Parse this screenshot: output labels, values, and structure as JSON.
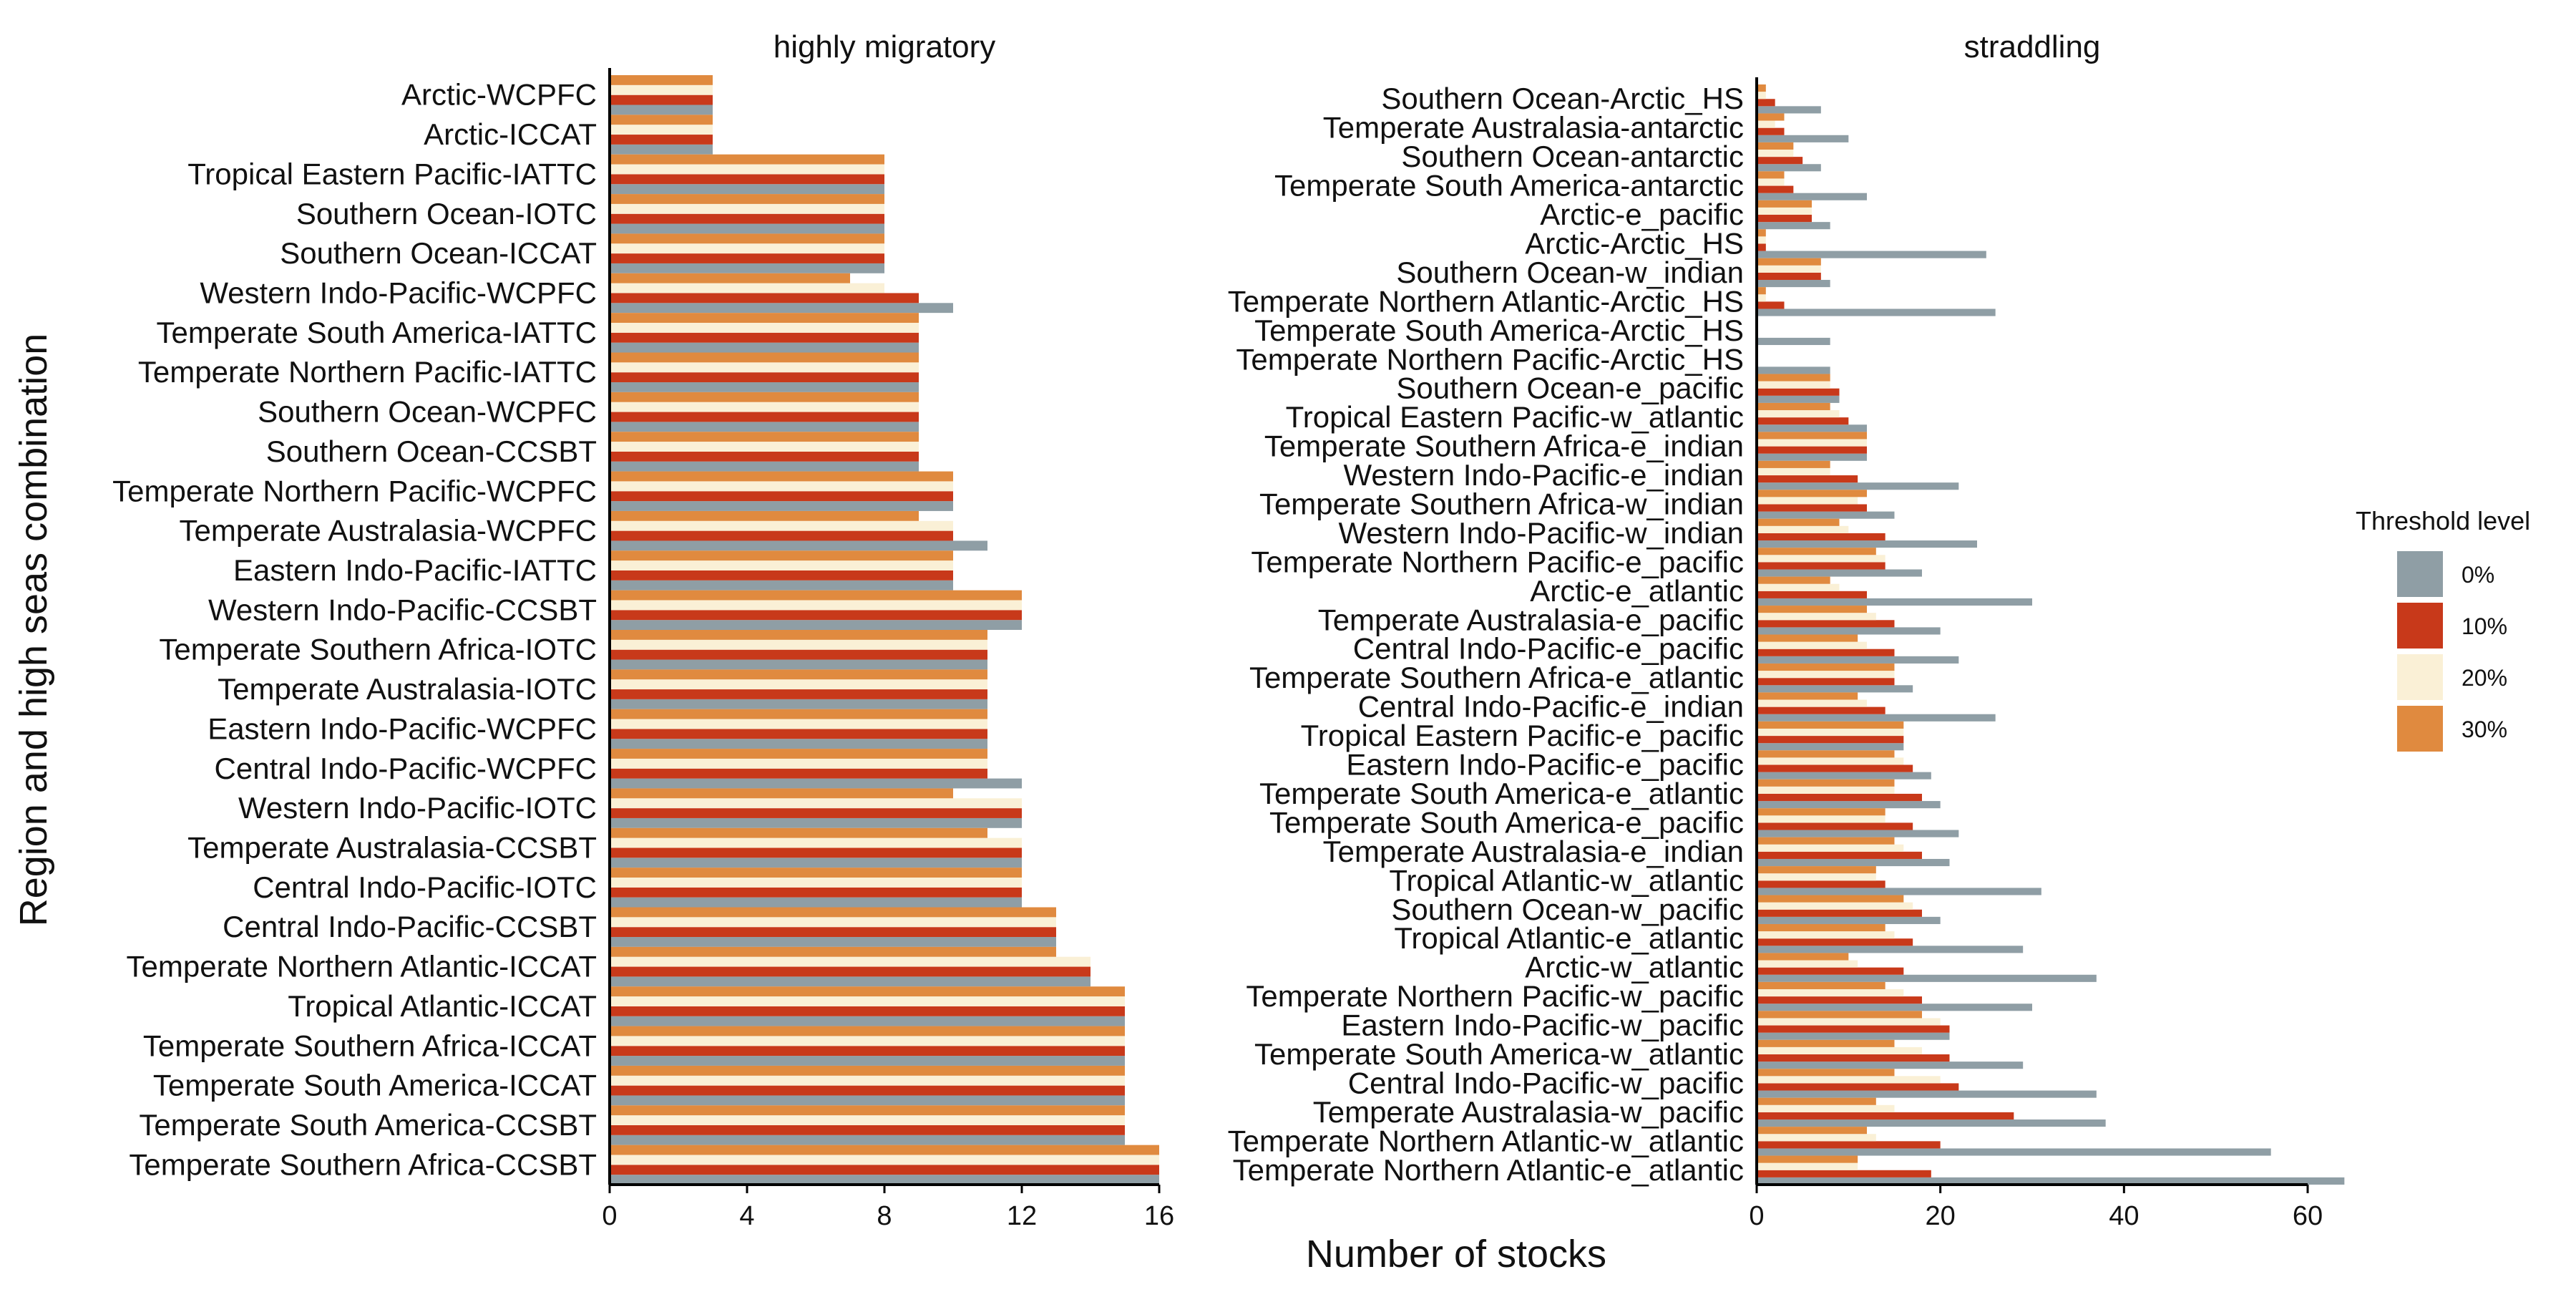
{
  "figure": {
    "ylabel": "Region and high seas combination",
    "xlabel": "Number of stocks"
  },
  "legend": {
    "title": "Threshold level",
    "entries": [
      {
        "label": "0%",
        "color": "#8f9ea5"
      },
      {
        "label": "10%",
        "color": "#c8391a"
      },
      {
        "label": "20%",
        "color": "#faf0d6"
      },
      {
        "label": "30%",
        "color": "#e08a3f"
      }
    ]
  },
  "chart_data": [
    {
      "type": "bar",
      "orientation": "horizontal",
      "title": "highly migratory",
      "xlim": [
        0,
        16
      ],
      "xticks": [
        0,
        4,
        8,
        12,
        16
      ],
      "categories": [
        "Arctic-WCPFC",
        "Arctic-ICCAT",
        "Tropical Eastern Pacific-IATTC",
        "Southern Ocean-IOTC",
        "Southern Ocean-ICCAT",
        "Western Indo-Pacific-WCPFC",
        "Temperate South America-IATTC",
        "Temperate Northern Pacific-IATTC",
        "Southern Ocean-WCPFC",
        "Southern Ocean-CCSBT",
        "Temperate Northern Pacific-WCPFC",
        "Temperate Australasia-WCPFC",
        "Eastern Indo-Pacific-IATTC",
        "Western Indo-Pacific-CCSBT",
        "Temperate Southern Africa-IOTC",
        "Temperate Australasia-IOTC",
        "Eastern Indo-Pacific-WCPFC",
        "Central Indo-Pacific-WCPFC",
        "Western Indo-Pacific-IOTC",
        "Temperate Australasia-CCSBT",
        "Central Indo-Pacific-IOTC",
        "Central Indo-Pacific-CCSBT",
        "Temperate Northern Atlantic-ICCAT",
        "Tropical Atlantic-ICCAT",
        "Temperate Southern Africa-ICCAT",
        "Temperate South America-ICCAT",
        "Temperate South America-CCSBT",
        "Temperate Southern Africa-CCSBT"
      ],
      "series": [
        {
          "name": "0%",
          "values": [
            3,
            3,
            8,
            8,
            8,
            10,
            9,
            9,
            9,
            9,
            10,
            11,
            10,
            12,
            11,
            11,
            11,
            12,
            12,
            12,
            12,
            13,
            14,
            15,
            15,
            15,
            15,
            16
          ]
        },
        {
          "name": "10%",
          "values": [
            3,
            3,
            8,
            8,
            8,
            9,
            9,
            9,
            9,
            9,
            10,
            10,
            10,
            12,
            11,
            11,
            11,
            11,
            12,
            12,
            12,
            13,
            14,
            15,
            15,
            15,
            15,
            16
          ]
        },
        {
          "name": "20%",
          "values": [
            3,
            3,
            8,
            8,
            8,
            8,
            9,
            9,
            9,
            9,
            10,
            10,
            10,
            12,
            11,
            11,
            11,
            11,
            12,
            12,
            12,
            13,
            14,
            15,
            15,
            15,
            15,
            16
          ]
        },
        {
          "name": "30%",
          "values": [
            3,
            3,
            8,
            8,
            8,
            7,
            9,
            9,
            9,
            9,
            10,
            9,
            10,
            12,
            11,
            11,
            11,
            11,
            10,
            11,
            12,
            13,
            13,
            15,
            15,
            15,
            15,
            16
          ]
        }
      ]
    },
    {
      "type": "bar",
      "orientation": "horizontal",
      "title": "straddling",
      "xlim": [
        0,
        60
      ],
      "xticks": [
        0,
        20,
        40,
        60
      ],
      "categories": [
        "Southern Ocean-Arctic_HS",
        "Temperate Australasia-antarctic",
        "Southern Ocean-antarctic",
        "Temperate South America-antarctic",
        "Arctic-e_pacific",
        "Arctic-Arctic_HS",
        "Southern Ocean-w_indian",
        "Temperate Northern Atlantic-Arctic_HS",
        "Temperate South America-Arctic_HS",
        "Temperate Northern Pacific-Arctic_HS",
        "Southern Ocean-e_pacific",
        "Tropical Eastern Pacific-w_atlantic",
        "Temperate Southern Africa-e_indian",
        "Western Indo-Pacific-e_indian",
        "Temperate Southern Africa-w_indian",
        "Western Indo-Pacific-w_indian",
        "Temperate Northern Pacific-e_pacific",
        "Arctic-e_atlantic",
        "Temperate Australasia-e_pacific",
        "Central Indo-Pacific-e_pacific",
        "Temperate Southern Africa-e_atlantic",
        "Central Indo-Pacific-e_indian",
        "Tropical Eastern Pacific-e_pacific",
        "Eastern Indo-Pacific-e_pacific",
        "Temperate South America-e_atlantic",
        "Temperate South America-e_pacific",
        "Temperate Australasia-e_indian",
        "Tropical Atlantic-w_atlantic",
        "Southern Ocean-w_pacific",
        "Tropical Atlantic-e_atlantic",
        "Arctic-w_atlantic",
        "Temperate Northern Pacific-w_pacific",
        "Eastern Indo-Pacific-w_pacific",
        "Temperate South America-w_atlantic",
        "Central Indo-Pacific-w_pacific",
        "Temperate Australasia-w_pacific",
        "Temperate Northern Atlantic-w_atlantic",
        "Temperate Northern Atlantic-e_atlantic"
      ],
      "series": [
        {
          "name": "0%",
          "values": [
            7,
            10,
            7,
            12,
            8,
            25,
            8,
            26,
            8,
            8,
            9,
            12,
            12,
            22,
            15,
            24,
            18,
            30,
            20,
            22,
            17,
            26,
            16,
            19,
            20,
            22,
            21,
            31,
            20,
            29,
            37,
            30,
            21,
            29,
            37,
            38,
            56,
            64
          ]
        },
        {
          "name": "10%",
          "values": [
            2,
            3,
            5,
            4,
            6,
            1,
            7,
            3,
            0,
            0,
            9,
            10,
            12,
            11,
            12,
            14,
            14,
            12,
            15,
            15,
            15,
            14,
            16,
            17,
            18,
            17,
            18,
            14,
            18,
            17,
            16,
            18,
            21,
            21,
            22,
            28,
            20,
            19
          ]
        },
        {
          "name": "20%",
          "values": [
            1,
            2,
            4,
            3,
            6,
            1,
            7,
            1,
            0,
            0,
            8,
            9,
            12,
            8,
            11,
            10,
            14,
            9,
            13,
            12,
            15,
            12,
            16,
            16,
            15,
            14,
            16,
            13,
            17,
            15,
            11,
            16,
            20,
            18,
            20,
            15,
            13,
            11
          ]
        },
        {
          "name": "30%",
          "values": [
            1,
            3,
            4,
            3,
            6,
            1,
            7,
            1,
            0,
            0,
            8,
            8,
            12,
            8,
            12,
            9,
            13,
            8,
            12,
            11,
            15,
            11,
            16,
            15,
            15,
            14,
            15,
            13,
            16,
            14,
            10,
            14,
            18,
            15,
            15,
            13,
            12,
            11
          ]
        }
      ]
    }
  ]
}
